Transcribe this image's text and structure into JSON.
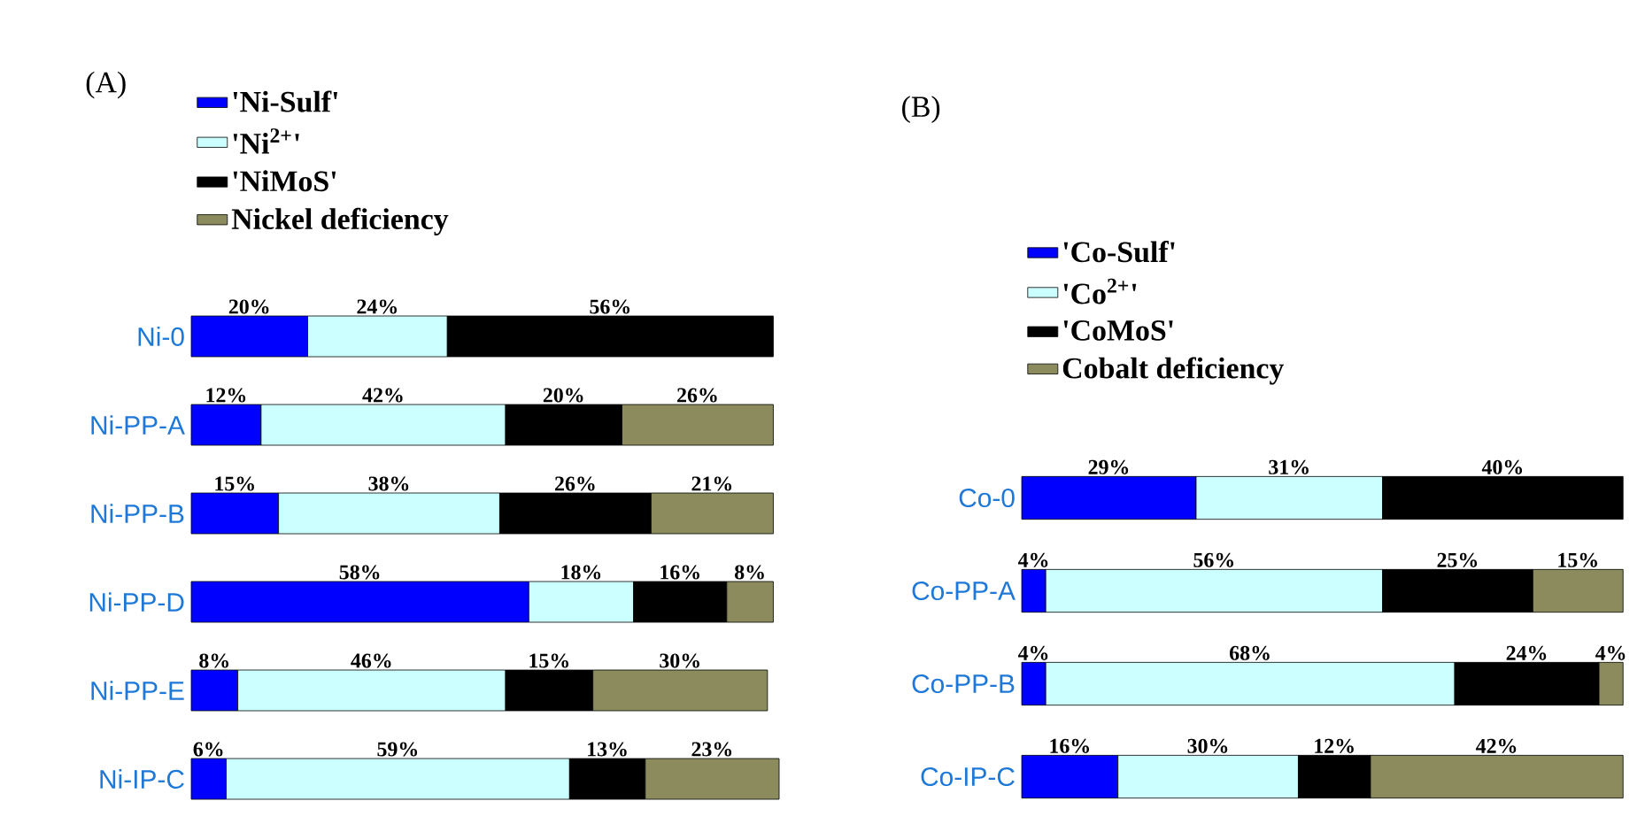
{
  "chart_data": [
    {
      "type": "bar",
      "title": "(A)",
      "orientation": "horizontal",
      "stacked": true,
      "legend": "top left",
      "tick_labels": "y",
      "xlim": [
        0,
        101
      ],
      "categories": [
        "Ni-0",
        "Ni-PP-A",
        "Ni-PP-B",
        "Ni-PP-D",
        "Ni-PP-E",
        "Ni-IP-C"
      ],
      "series": [
        {
          "name": "'Ni-Sulf'",
          "color": "#0000ff",
          "values": [
            20,
            12,
            15,
            58,
            8,
            6
          ],
          "value_labels": [
            "20%",
            "12%",
            "15%",
            "58%",
            "8%",
            "6%"
          ]
        },
        {
          "name": "'Ni$^{2+}$'",
          "color": "#ccffff",
          "values": [
            24,
            42,
            38,
            18,
            46,
            59
          ],
          "value_labels": [
            "24%",
            "42%",
            "38%",
            "18%",
            "46%",
            "59%"
          ]
        },
        {
          "name": "'NiMoS'",
          "color": "#000000",
          "values": [
            56,
            20,
            26,
            16,
            15,
            13
          ],
          "value_labels": [
            "56%",
            "20%",
            "26%",
            "16%",
            "15%",
            "13%"
          ]
        },
        {
          "name": "Nickel deficiency",
          "color": "#8b8b5e",
          "values": [
            null,
            26,
            21,
            8,
            30,
            23
          ],
          "value_labels": [
            null,
            "26%",
            "21%",
            "8%",
            "30%",
            "23%"
          ]
        }
      ]
    },
    {
      "type": "bar",
      "title": "(B)",
      "orientation": "horizontal",
      "stacked": true,
      "legend": "top left",
      "tick_labels": "y",
      "xlim": [
        0,
        101
      ],
      "categories": [
        "Co-0",
        "Co-PP-A",
        "Co-PP-B",
        "Co-IP-C"
      ],
      "series": [
        {
          "name": "'Co-Sulf'",
          "color": "#0000ff",
          "values": [
            29,
            4,
            4,
            16
          ],
          "value_labels": [
            "29%",
            "4%",
            "4%",
            "16%"
          ]
        },
        {
          "name": "'Co$^{2+}$'",
          "color": "#ccffff",
          "values": [
            31,
            56,
            68,
            30
          ],
          "value_labels": [
            "31%",
            "56%",
            "68%",
            "30%"
          ]
        },
        {
          "name": "'CoMoS'",
          "color": "#000000",
          "values": [
            40,
            25,
            24,
            12
          ],
          "value_labels": [
            "40%",
            "25%",
            "24%",
            "12%"
          ]
        },
        {
          "name": "Cobalt deficiency",
          "color": "#8b8b5e",
          "values": [
            null,
            15,
            4,
            42
          ],
          "value_labels": [
            null,
            "15%",
            "4%",
            "42%"
          ]
        }
      ]
    }
  ]
}
